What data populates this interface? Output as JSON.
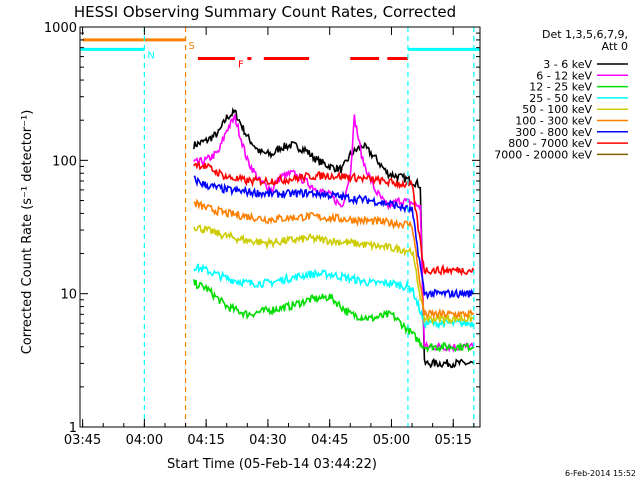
{
  "chart_data": {
    "type": "line",
    "title": "HESSI Observing Summary Count Rates, Corrected",
    "xlabel": "Start Time (05-Feb-14 03:44:22)",
    "ylabel": "Corrected Count Rate (s⁻¹ detector⁻¹)",
    "y_scale": "log",
    "ylim": [
      1,
      1000
    ],
    "xlim": [
      "03:44:22",
      "05:21:30"
    ],
    "x_ticks": [
      "03:45",
      "04:00",
      "04:15",
      "04:30",
      "04:45",
      "05:00",
      "05:15"
    ],
    "y_ticks": [
      "1",
      "10",
      "100",
      "1000"
    ],
    "timestamp": "6-Feb-2014 15:52",
    "legend_header": [
      "Det 1,3,5,6,7,9,",
      "Att 0"
    ],
    "legend_position": "outside-right",
    "series": [
      {
        "name": "3 - 6 keV",
        "color": "#000000",
        "x": [
          "04:12",
          "04:15",
          "04:18",
          "04:20",
          "04:22",
          "04:25",
          "04:28",
          "04:31",
          "04:33",
          "04:36",
          "04:39",
          "04:42",
          "04:45",
          "04:48",
          "04:50",
          "04:53",
          "04:56",
          "04:59",
          "05:02",
          "05:05",
          "05:07",
          "05:08",
          "05:20"
        ],
        "y": [
          130,
          140,
          160,
          210,
          230,
          150,
          115,
          110,
          125,
          130,
          120,
          100,
          90,
          85,
          110,
          130,
          105,
          80,
          75,
          70,
          65,
          3,
          3
        ]
      },
      {
        "name": "6 - 12 keV",
        "color": "#ff00ff",
        "x": [
          "04:12",
          "04:15",
          "04:18",
          "04:20",
          "04:22",
          "04:25",
          "04:28",
          "04:31",
          "04:33",
          "04:36",
          "04:39",
          "04:42",
          "04:45",
          "04:48",
          "04:50",
          "04:51",
          "04:53",
          "04:56",
          "04:59",
          "05:02",
          "05:05",
          "05:07",
          "05:08",
          "05:20"
        ],
        "y": [
          95,
          100,
          115,
          170,
          210,
          100,
          70,
          60,
          75,
          80,
          70,
          60,
          55,
          45,
          80,
          210,
          100,
          60,
          45,
          50,
          48,
          45,
          4,
          4
        ]
      },
      {
        "name": "12 - 25 keV",
        "color": "#00dd00",
        "x": [
          "04:12",
          "04:15",
          "04:20",
          "04:25",
          "04:30",
          "04:35",
          "04:40",
          "04:45",
          "04:50",
          "04:55",
          "05:00",
          "05:05",
          "05:08",
          "05:20"
        ],
        "y": [
          12,
          11,
          8,
          7,
          7.5,
          8,
          9,
          9.5,
          7,
          6.5,
          7,
          5,
          4,
          4
        ]
      },
      {
        "name": "25 - 50 keV",
        "color": "#00ffff",
        "x": [
          "04:12",
          "04:15",
          "04:20",
          "04:25",
          "04:30",
          "04:35",
          "04:40",
          "04:45",
          "04:50",
          "04:55",
          "05:00",
          "05:05",
          "05:08",
          "05:20"
        ],
        "y": [
          16,
          15,
          13,
          12,
          12,
          13,
          14,
          14,
          13,
          12,
          12,
          11,
          6,
          6
        ]
      },
      {
        "name": "50 - 100 keV",
        "color": "#cccc00",
        "x": [
          "04:12",
          "04:15",
          "04:20",
          "04:25",
          "04:30",
          "04:35",
          "04:40",
          "04:45",
          "04:50",
          "04:55",
          "05:00",
          "05:05",
          "05:08",
          "05:20"
        ],
        "y": [
          32,
          30,
          27,
          25,
          24,
          25,
          26,
          25,
          24,
          23,
          22,
          21,
          6.5,
          6.5
        ]
      },
      {
        "name": "100 - 300 keV",
        "color": "#ff8000",
        "x": [
          "04:12",
          "04:15",
          "04:20",
          "04:25",
          "04:30",
          "04:35",
          "04:40",
          "04:45",
          "04:50",
          "04:55",
          "05:00",
          "05:05",
          "05:08",
          "05:20"
        ],
        "y": [
          48,
          44,
          40,
          38,
          36,
          37,
          38,
          37,
          36,
          35,
          34,
          33,
          7,
          7
        ]
      },
      {
        "name": "300 - 800 keV",
        "color": "#0000ff",
        "x": [
          "04:12",
          "04:15",
          "04:20",
          "04:25",
          "04:30",
          "04:35",
          "04:40",
          "04:45",
          "04:50",
          "04:55",
          "05:00",
          "05:05",
          "05:08",
          "05:20"
        ],
        "y": [
          72,
          65,
          60,
          58,
          56,
          56,
          57,
          55,
          52,
          50,
          47,
          42,
          10,
          10
        ]
      },
      {
        "name": "800 - 7000 keV",
        "color": "#ff0000",
        "x": [
          "04:12",
          "04:15",
          "04:20",
          "04:25",
          "04:30",
          "04:35",
          "04:40",
          "04:45",
          "04:50",
          "04:55",
          "05:00",
          "05:05",
          "05:08",
          "05:20"
        ],
        "y": [
          95,
          90,
          75,
          70,
          70,
          72,
          76,
          77,
          75,
          72,
          68,
          65,
          15,
          15
        ]
      },
      {
        "name": "7000 - 20000 keV",
        "color": "#806000",
        "x": [],
        "y": []
      }
    ],
    "flags": [
      {
        "label": "S",
        "color": "#ff8000",
        "segments": [
          [
            "03:45",
            "04:10"
          ]
        ],
        "level": 800
      },
      {
        "label": "N",
        "color": "#00ffff",
        "segments": [
          [
            "03:44:22",
            "04:00"
          ],
          [
            "05:04",
            "05:21:30"
          ]
        ],
        "level": 680
      },
      {
        "label": "F",
        "color": "#ff0000",
        "segments": [
          [
            "04:13",
            "04:22"
          ],
          [
            "04:25",
            "04:26"
          ],
          [
            "04:29",
            "04:40"
          ],
          [
            "04:50",
            "04:57"
          ],
          [
            "04:59",
            "05:04"
          ]
        ],
        "level": 580
      }
    ],
    "vlines": [
      {
        "time": "04:10",
        "color": "#ff8000"
      },
      {
        "time": "04:00",
        "color": "#00ffff"
      },
      {
        "time": "05:04",
        "color": "#00ffff"
      },
      {
        "time": "05:20",
        "color": "#00ffff"
      }
    ]
  }
}
